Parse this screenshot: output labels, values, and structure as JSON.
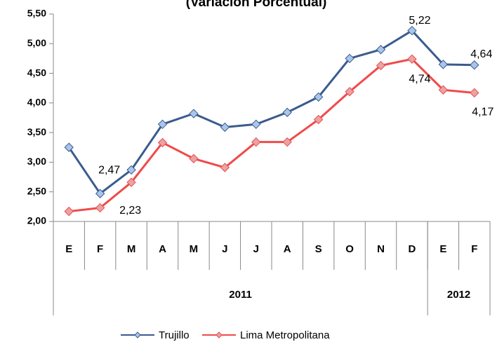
{
  "chart_data": {
    "type": "line",
    "title": "(Variación Porcentual)",
    "categories": [
      "E",
      "F",
      "M",
      "A",
      "M",
      "J",
      "J",
      "A",
      "S",
      "O",
      "N",
      "D",
      "E",
      "F"
    ],
    "groups": [
      {
        "label": "2011",
        "count": 12
      },
      {
        "label": "2012",
        "count": 2
      }
    ],
    "series": [
      {
        "name": "Trujillo",
        "color": "#3b5b8e",
        "marker_color": "#a9c5ea",
        "values": [
          3.25,
          2.47,
          2.87,
          3.64,
          3.82,
          3.59,
          3.64,
          3.84,
          4.1,
          4.75,
          4.9,
          5.22,
          4.65,
          4.64
        ],
        "value_labels": [
          null,
          "2,47",
          null,
          null,
          null,
          null,
          null,
          null,
          null,
          null,
          null,
          "5,22",
          null,
          "4,64"
        ]
      },
      {
        "name": "Lima Metropolitana",
        "color": "#f04a4a",
        "marker_color": "#e8a3a3",
        "values": [
          2.17,
          2.23,
          2.66,
          3.33,
          3.06,
          2.91,
          3.34,
          3.34,
          3.72,
          4.19,
          4.63,
          4.74,
          4.22,
          4.17
        ],
        "value_labels": [
          null,
          "2,23",
          null,
          null,
          null,
          null,
          null,
          null,
          null,
          null,
          null,
          "4,74",
          null,
          "4,17"
        ]
      }
    ],
    "ylim": [
      2,
      5.5
    ],
    "yticks": [
      {
        "value": 2,
        "label": "2,00"
      },
      {
        "value": 2.5,
        "label": "2,50"
      },
      {
        "value": 3,
        "label": "3,00"
      },
      {
        "value": 3.5,
        "label": "3,50"
      },
      {
        "value": 4,
        "label": "4,00"
      },
      {
        "value": 4.5,
        "label": "4,50"
      },
      {
        "value": 5,
        "label": "5,00"
      },
      {
        "value": 5.5,
        "label": "5,50"
      }
    ],
    "legend": "bottom"
  }
}
